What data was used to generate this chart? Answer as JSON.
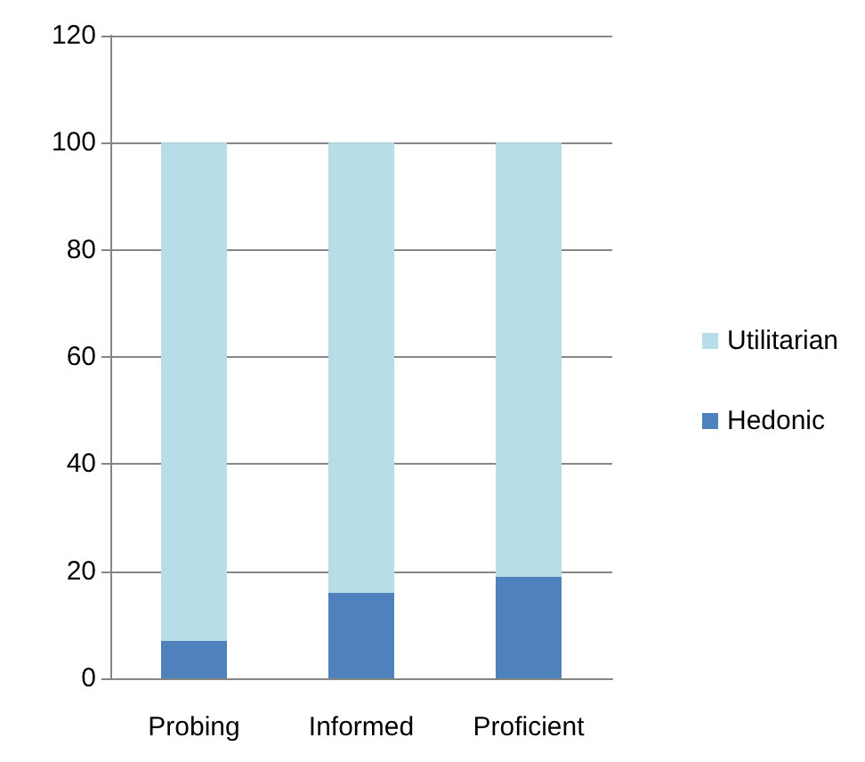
{
  "chart_data": {
    "type": "bar",
    "stacked": true,
    "categories": [
      "Probing",
      "Informed",
      "Proficient"
    ],
    "series": [
      {
        "name": "Hedonic",
        "color": "#4f81bd",
        "values": [
          7,
          16,
          19
        ]
      },
      {
        "name": "Utilitarian",
        "color": "#b7dde8",
        "values": [
          93,
          84,
          81
        ]
      }
    ],
    "ylim": [
      0,
      120
    ],
    "yticks": [
      0,
      20,
      40,
      60,
      80,
      100,
      120
    ],
    "grid": "y",
    "legend": "right"
  }
}
